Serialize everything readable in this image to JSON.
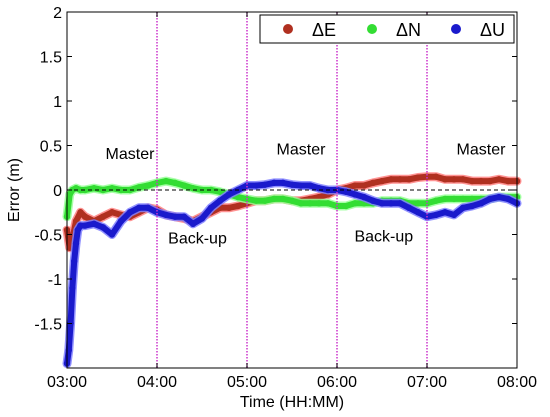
{
  "chart_data": {
    "type": "scatter",
    "xlabel": "Time (HH:MM)",
    "ylabel": "Error (m)",
    "xlim": [
      3,
      8
    ],
    "ylim": [
      -2,
      2
    ],
    "x_ticks": [
      3,
      4,
      5,
      6,
      7,
      8
    ],
    "x_tick_labels": [
      "03:00",
      "04:00",
      "05:00",
      "06:00",
      "07:00",
      "08:00"
    ],
    "y_ticks": [
      -1.5,
      -1,
      -0.5,
      0,
      0.5,
      1,
      1.5,
      2
    ],
    "y_tick_labels": [
      "-1.5",
      "-1",
      "-0.5",
      "0",
      "0.5",
      "1",
      "1.5",
      "2"
    ],
    "grid": false,
    "legend": {
      "placement": "top-right",
      "entries": [
        {
          "label": "ΔE",
          "color": "#b03020"
        },
        {
          "label": "ΔN",
          "color": "#33dd33"
        },
        {
          "label": "ΔU",
          "color": "#1a1acc"
        }
      ]
    },
    "zero_line": {
      "y": 0,
      "style": "dashed",
      "color": "#000000"
    },
    "switch_lines": {
      "x": [
        4,
        5,
        6,
        7
      ],
      "color": "#cc33cc",
      "style": "dotted"
    },
    "annotations": [
      {
        "text": "Master",
        "x": 3.7,
        "y": 0.35
      },
      {
        "text": "Back-up",
        "x": 4.45,
        "y": -0.6
      },
      {
        "text": "Master",
        "x": 5.6,
        "y": 0.4
      },
      {
        "text": "Back-up",
        "x": 6.52,
        "y": -0.58
      },
      {
        "text": "Master",
        "x": 7.6,
        "y": 0.4
      }
    ],
    "series": [
      {
        "name": "ΔE",
        "color": "#b03020",
        "halo": "#ff8080",
        "x": [
          3.0,
          3.03,
          3.06,
          3.1,
          3.15,
          3.2,
          3.3,
          3.4,
          3.5,
          3.6,
          3.7,
          3.8,
          3.9,
          4.0,
          4.1,
          4.2,
          4.3,
          4.4,
          4.5,
          4.6,
          4.7,
          4.8,
          4.9,
          5.0,
          5.1,
          5.2,
          5.3,
          5.4,
          5.5,
          5.6,
          5.7,
          5.8,
          5.9,
          6.0,
          6.1,
          6.2,
          6.3,
          6.4,
          6.5,
          6.6,
          6.7,
          6.8,
          6.9,
          7.0,
          7.1,
          7.2,
          7.3,
          7.4,
          7.5,
          7.6,
          7.7,
          7.8,
          7.9,
          8.0
        ],
        "y": [
          -0.45,
          -0.65,
          -0.55,
          -0.35,
          -0.25,
          -0.3,
          -0.35,
          -0.3,
          -0.25,
          -0.28,
          -0.3,
          -0.25,
          -0.2,
          -0.22,
          -0.28,
          -0.3,
          -0.32,
          -0.35,
          -0.3,
          -0.25,
          -0.2,
          -0.2,
          -0.18,
          -0.15,
          -0.12,
          -0.12,
          -0.1,
          -0.1,
          -0.12,
          -0.12,
          -0.1,
          -0.08,
          -0.05,
          0.0,
          0.02,
          0.05,
          0.05,
          0.08,
          0.1,
          0.12,
          0.12,
          0.12,
          0.14,
          0.15,
          0.15,
          0.12,
          0.12,
          0.12,
          0.1,
          0.1,
          0.1,
          0.12,
          0.1,
          0.1
        ]
      },
      {
        "name": "ΔN",
        "color": "#33dd33",
        "halo": "#99ff99",
        "x": [
          3.0,
          3.03,
          3.06,
          3.1,
          3.15,
          3.2,
          3.3,
          3.4,
          3.5,
          3.6,
          3.7,
          3.8,
          3.9,
          4.0,
          4.1,
          4.2,
          4.3,
          4.4,
          4.5,
          4.6,
          4.7,
          4.8,
          4.9,
          5.0,
          5.1,
          5.2,
          5.3,
          5.4,
          5.5,
          5.6,
          5.7,
          5.8,
          5.9,
          6.0,
          6.1,
          6.2,
          6.3,
          6.4,
          6.5,
          6.6,
          6.7,
          6.8,
          6.9,
          7.0,
          7.1,
          7.2,
          7.3,
          7.4,
          7.5,
          7.6,
          7.7,
          7.8,
          7.9,
          8.0
        ],
        "y": [
          -0.3,
          -0.05,
          0.0,
          0.02,
          0.0,
          0.0,
          0.02,
          0.0,
          0.02,
          0.0,
          0.0,
          0.03,
          0.05,
          0.08,
          0.1,
          0.08,
          0.05,
          0.02,
          0.0,
          0.0,
          -0.02,
          -0.05,
          -0.08,
          -0.1,
          -0.12,
          -0.12,
          -0.1,
          -0.1,
          -0.12,
          -0.15,
          -0.15,
          -0.15,
          -0.15,
          -0.18,
          -0.18,
          -0.15,
          -0.15,
          -0.15,
          -0.12,
          -0.12,
          -0.12,
          -0.15,
          -0.15,
          -0.15,
          -0.12,
          -0.1,
          -0.1,
          -0.1,
          -0.1,
          -0.1,
          -0.1,
          -0.08,
          -0.08,
          -0.08
        ]
      },
      {
        "name": "ΔU",
        "color": "#1a1acc",
        "halo": "#8080ff",
        "x": [
          3.0,
          3.02,
          3.04,
          3.06,
          3.08,
          3.1,
          3.12,
          3.15,
          3.2,
          3.3,
          3.4,
          3.5,
          3.6,
          3.7,
          3.8,
          3.9,
          4.0,
          4.1,
          4.2,
          4.3,
          4.4,
          4.5,
          4.6,
          4.7,
          4.8,
          4.9,
          5.0,
          5.1,
          5.2,
          5.3,
          5.4,
          5.5,
          5.6,
          5.7,
          5.8,
          5.9,
          6.0,
          6.1,
          6.2,
          6.3,
          6.4,
          6.5,
          6.6,
          6.7,
          6.8,
          6.9,
          7.0,
          7.1,
          7.2,
          7.3,
          7.4,
          7.5,
          7.6,
          7.7,
          7.8,
          7.9,
          8.0
        ],
        "y": [
          -1.95,
          -1.8,
          -1.5,
          -1.1,
          -0.8,
          -0.6,
          -0.45,
          -0.4,
          -0.4,
          -0.38,
          -0.42,
          -0.5,
          -0.35,
          -0.25,
          -0.2,
          -0.2,
          -0.25,
          -0.28,
          -0.3,
          -0.3,
          -0.38,
          -0.32,
          -0.2,
          -0.12,
          -0.05,
          0.0,
          0.05,
          0.05,
          0.06,
          0.08,
          0.08,
          0.06,
          0.05,
          0.05,
          0.02,
          0.0,
          0.0,
          -0.02,
          -0.05,
          -0.08,
          -0.12,
          -0.15,
          -0.15,
          -0.15,
          -0.2,
          -0.25,
          -0.3,
          -0.28,
          -0.25,
          -0.28,
          -0.2,
          -0.18,
          -0.15,
          -0.1,
          -0.08,
          -0.1,
          -0.15
        ]
      }
    ]
  }
}
